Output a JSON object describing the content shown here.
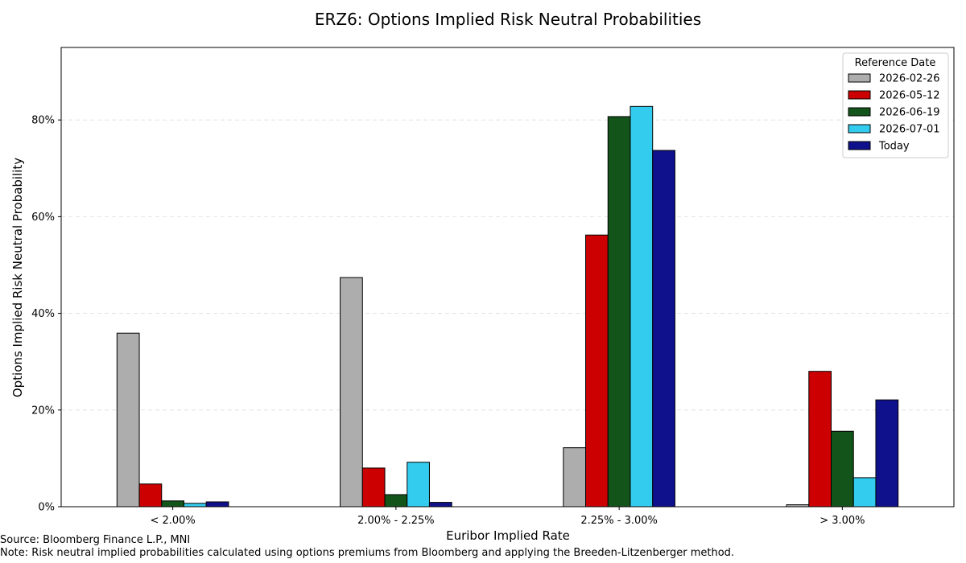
{
  "chart_data": {
    "type": "bar",
    "title": "ERZ6: Options Implied Risk Neutral Probabilities",
    "xlabel": "Euribor Implied Rate",
    "ylabel": "Options Implied Risk Neutral Probability",
    "categories": [
      "< 2.00%",
      "2.00% - 2.25%",
      "2.25% - 3.00%",
      "> 3.00%"
    ],
    "yticks": [
      0,
      20,
      40,
      60,
      80
    ],
    "ytick_labels": [
      "0%",
      "20%",
      "40%",
      "60%",
      "80%"
    ],
    "ylim": [
      0,
      95
    ],
    "grid": "horizontal-dashed",
    "legend": {
      "title": "Reference Date",
      "position": "top-right"
    },
    "series": [
      {
        "name": "2026-02-26",
        "color": "#adadad",
        "values": [
          35.9,
          47.4,
          12.2,
          0.4
        ]
      },
      {
        "name": "2026-05-12",
        "color": "#cc0000",
        "values": [
          4.7,
          8.0,
          56.2,
          28.0
        ]
      },
      {
        "name": "2026-06-19",
        "color": "#13541a",
        "values": [
          1.2,
          2.5,
          80.7,
          15.6
        ]
      },
      {
        "name": "2026-07-01",
        "color": "#33ccee",
        "values": [
          0.7,
          9.2,
          82.8,
          6.0
        ]
      },
      {
        "name": "Today",
        "color": "#0f118c",
        "values": [
          1.0,
          0.9,
          73.7,
          22.1
        ]
      }
    ]
  },
  "footer": {
    "source": "Source: Bloomberg Finance L.P., MNI",
    "note": "Note: Risk neutral implied probabilities calculated using options premiums from Bloomberg and applying the Breeden-Litzenberger method."
  }
}
